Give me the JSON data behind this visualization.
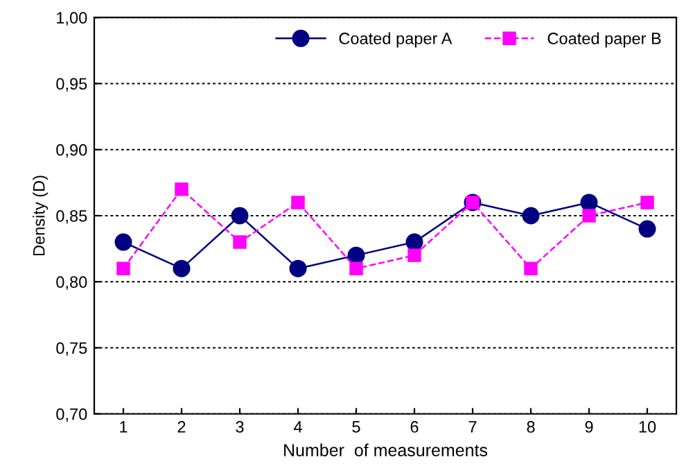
{
  "chart_data": {
    "type": "line",
    "xlabel": "Number  of measurements",
    "ylabel": "Density (D)",
    "categories": [
      "1",
      "2",
      "3",
      "4",
      "5",
      "6",
      "7",
      "8",
      "9",
      "10"
    ],
    "series": [
      {
        "name": "Coated paper A",
        "color": "#000080",
        "marker": "circle",
        "line_style": "solid",
        "values": [
          0.83,
          0.81,
          0.85,
          0.81,
          0.82,
          0.83,
          0.86,
          0.85,
          0.86,
          0.84
        ]
      },
      {
        "name": "Coated paper B",
        "color": "#ff00ff",
        "marker": "square",
        "line_style": "dashed",
        "values": [
          0.81,
          0.87,
          0.83,
          0.86,
          0.81,
          0.82,
          0.86,
          0.81,
          0.85,
          0.86
        ]
      }
    ],
    "ylim": [
      0.7,
      1.0
    ],
    "yticks": [
      {
        "value": 0.7,
        "label": "0,70"
      },
      {
        "value": 0.75,
        "label": "0,75"
      },
      {
        "value": 0.8,
        "label": "0,80"
      },
      {
        "value": 0.85,
        "label": "0,85"
      },
      {
        "value": 0.9,
        "label": "0,90"
      },
      {
        "value": 0.95,
        "label": "0,95"
      },
      {
        "value": 1.0,
        "label": "1,00"
      }
    ],
    "grid": "y",
    "legend": "top right"
  }
}
